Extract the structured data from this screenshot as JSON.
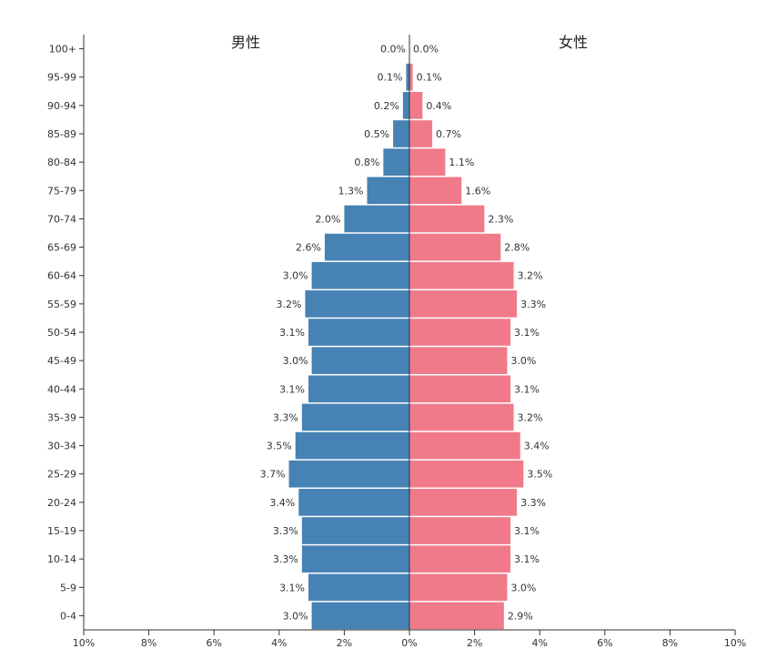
{
  "chart_data": {
    "type": "bar",
    "orientation": "horizontal-diverging",
    "categories": [
      "100+",
      "95-99",
      "90-94",
      "85-89",
      "80-84",
      "75-79",
      "70-74",
      "65-69",
      "60-64",
      "55-59",
      "50-54",
      "45-49",
      "40-44",
      "35-39",
      "30-34",
      "25-29",
      "20-24",
      "15-19",
      "10-14",
      "5-9",
      "0-4"
    ],
    "series": [
      {
        "name": "男性",
        "color": "#4682b4",
        "values": [
          0.0,
          0.1,
          0.2,
          0.5,
          0.8,
          1.3,
          2.0,
          2.6,
          3.0,
          3.2,
          3.1,
          3.0,
          3.1,
          3.3,
          3.5,
          3.7,
          3.4,
          3.3,
          3.3,
          3.1,
          3.0
        ],
        "labels": [
          "0.0%",
          "0.1%",
          "0.2%",
          "0.5%",
          "0.8%",
          "1.3%",
          "2.0%",
          "2.6%",
          "3.0%",
          "3.2%",
          "3.1%",
          "3.0%",
          "3.1%",
          "3.3%",
          "3.5%",
          "3.7%",
          "3.4%",
          "3.3%",
          "3.3%",
          "3.1%",
          "3.0%"
        ]
      },
      {
        "name": "女性",
        "color": "#f07a8a",
        "values": [
          0.0,
          0.1,
          0.4,
          0.7,
          1.1,
          1.6,
          2.3,
          2.8,
          3.2,
          3.3,
          3.1,
          3.0,
          3.1,
          3.2,
          3.4,
          3.5,
          3.3,
          3.1,
          3.1,
          3.0,
          2.9
        ],
        "labels": [
          "0.0%",
          "0.1%",
          "0.4%",
          "0.7%",
          "1.1%",
          "1.6%",
          "2.3%",
          "2.8%",
          "3.2%",
          "3.3%",
          "3.1%",
          "3.0%",
          "3.1%",
          "3.2%",
          "3.4%",
          "3.5%",
          "3.3%",
          "3.1%",
          "3.1%",
          "3.0%",
          "2.9%"
        ]
      }
    ],
    "xlim": [
      -10,
      10
    ],
    "x_ticks": [
      "10%",
      "8%",
      "6%",
      "4%",
      "2%",
      "0%",
      "2%",
      "4%",
      "6%",
      "8%",
      "10%"
    ],
    "grid": false,
    "legend": "titles above each side"
  }
}
